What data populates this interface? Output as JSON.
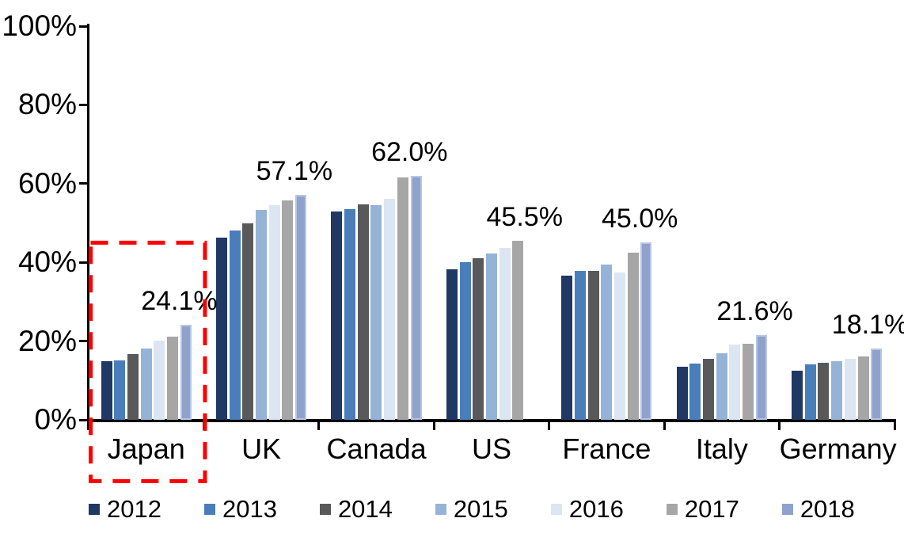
{
  "chart_data": {
    "type": "bar",
    "title": "",
    "xlabel": "",
    "ylabel": "",
    "categories": [
      "Japan",
      "UK",
      "Canada",
      "US",
      "France",
      "Italy",
      "Germany"
    ],
    "series": [
      {
        "name": "2012",
        "color": "#1F3864",
        "values": [
          14.9,
          46.3,
          53.0,
          38.2,
          36.6,
          13.4,
          12.5
        ]
      },
      {
        "name": "2013",
        "color": "#4A7EBB",
        "values": [
          15.1,
          48.0,
          53.5,
          40.1,
          37.8,
          14.2,
          14.1
        ]
      },
      {
        "name": "2014",
        "color": "#595959",
        "values": [
          16.8,
          50.0,
          54.8,
          41.0,
          37.8,
          15.4,
          14.4
        ]
      },
      {
        "name": "2015",
        "color": "#95B3D7",
        "values": [
          18.1,
          53.3,
          54.6,
          42.3,
          39.4,
          17.0,
          14.8
        ]
      },
      {
        "name": "2016",
        "color": "#DCE6F2",
        "values": [
          20.1,
          54.5,
          56.2,
          43.6,
          37.4,
          19.2,
          15.5
        ]
      },
      {
        "name": "2017",
        "color": "#A6A6A6",
        "values": [
          21.2,
          55.8,
          61.6,
          45.5,
          42.4,
          19.3,
          16.0
        ]
      },
      {
        "name": "2018",
        "color": "#8FA2CC",
        "values": [
          24.1,
          57.1,
          62.0,
          null,
          45.0,
          21.6,
          18.1
        ]
      }
    ],
    "data_labels": [
      "24.1%",
      "57.1%",
      "62.0%",
      "45.5%",
      "45.0%",
      "21.6%",
      "18.1%"
    ],
    "y_axis": {
      "min": 0,
      "max": 100,
      "ticks": [
        {
          "value": 0,
          "label": "0%"
        },
        {
          "value": 20,
          "label": "20%"
        },
        {
          "value": 40,
          "label": "40%"
        },
        {
          "value": 60,
          "label": "60%"
        },
        {
          "value": 80,
          "label": "80%"
        },
        {
          "value": 100,
          "label": "100%"
        }
      ]
    },
    "grid": "off",
    "legend": {
      "position": "bottom",
      "entries": [
        "2012",
        "2013",
        "2014",
        "2015",
        "2016",
        "2017",
        "2018"
      ]
    },
    "highlight_box": {
      "category": "Japan",
      "color": "#FF0000",
      "style": "dashed"
    }
  },
  "colors": {
    "axis": "#000000",
    "background": "#FFFFFF",
    "highlight": "#FF0000"
  }
}
